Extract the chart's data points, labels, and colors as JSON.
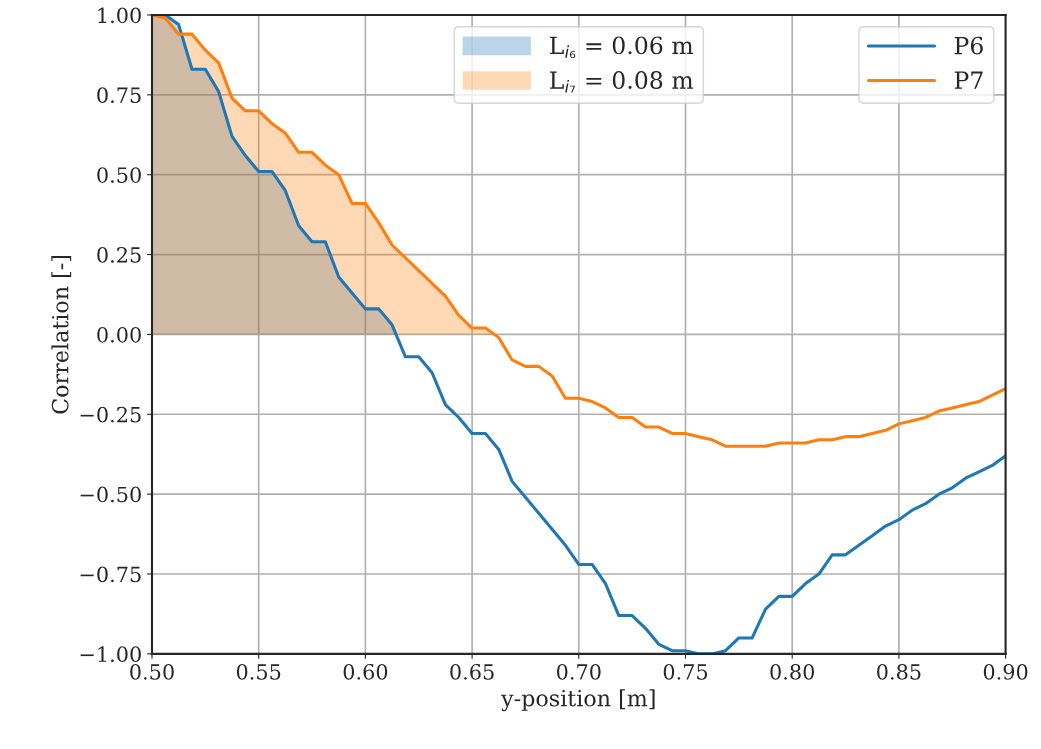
{
  "chart_data": {
    "type": "line",
    "xlabel": "y-position [m]",
    "ylabel": "Correlation [-]",
    "x": [
      0.5,
      0.50625,
      0.5125,
      0.51875,
      0.525,
      0.53125,
      0.5375,
      0.54375,
      0.55,
      0.55625,
      0.5625,
      0.56875,
      0.575,
      0.58125,
      0.5875,
      0.59375,
      0.6,
      0.60625,
      0.6125,
      0.61875,
      0.625,
      0.63125,
      0.6375,
      0.64375,
      0.65,
      0.65625,
      0.6625,
      0.66875,
      0.675,
      0.68125,
      0.6875,
      0.69375,
      0.7,
      0.70625,
      0.7125,
      0.71875,
      0.725,
      0.73125,
      0.7375,
      0.74375,
      0.75,
      0.75625,
      0.7625,
      0.76875,
      0.775,
      0.78125,
      0.7875,
      0.79375,
      0.8,
      0.80625,
      0.8125,
      0.81875,
      0.825,
      0.83125,
      0.8375,
      0.84375,
      0.85,
      0.85625,
      0.8625,
      0.86875,
      0.875,
      0.88125,
      0.8875,
      0.89375,
      0.9
    ],
    "series": [
      {
        "type": "area",
        "name": "L$_{i₆}$ = 0.06 m",
        "color": "#1f77b4",
        "x": [
          0.5,
          0.50625,
          0.5125,
          0.51875,
          0.525,
          0.53125,
          0.5375,
          0.54375,
          0.55,
          0.55625,
          0.5625,
          0.56875,
          0.575,
          0.58125,
          0.5875,
          0.59375,
          0.6,
          0.60625,
          0.6125,
          0.614
        ],
        "values": [
          1.0,
          1.0,
          0.97,
          0.83,
          0.83,
          0.76,
          0.62,
          0.56,
          0.51,
          0.51,
          0.45,
          0.34,
          0.29,
          0.29,
          0.18,
          0.13,
          0.08,
          0.08,
          0.03,
          0.0
        ]
      },
      {
        "type": "area",
        "name": "L$_{i₇}$ = 0.08 m",
        "color": "#ff7f0e",
        "x": [
          0.5,
          0.50625,
          0.5125,
          0.51875,
          0.525,
          0.53125,
          0.5375,
          0.54375,
          0.55,
          0.55625,
          0.5625,
          0.56875,
          0.575,
          0.58125,
          0.5875,
          0.59375,
          0.6,
          0.60625,
          0.6125,
          0.61875,
          0.625,
          0.63125,
          0.6375,
          0.64375,
          0.65,
          0.65625,
          0.66
        ],
        "values": [
          1.0,
          0.99,
          0.94,
          0.94,
          0.89,
          0.85,
          0.74,
          0.7,
          0.7,
          0.66,
          0.63,
          0.57,
          0.57,
          0.53,
          0.5,
          0.41,
          0.41,
          0.35,
          0.28,
          0.24,
          0.2,
          0.16,
          0.12,
          0.06,
          0.02,
          0.02,
          0.0
        ]
      },
      {
        "name": "P6",
        "color": "#1f77b4",
        "values": [
          1.0,
          1.0,
          0.97,
          0.83,
          0.83,
          0.76,
          0.62,
          0.56,
          0.51,
          0.51,
          0.45,
          0.34,
          0.29,
          0.29,
          0.18,
          0.13,
          0.08,
          0.08,
          0.03,
          -0.07,
          -0.07,
          -0.12,
          -0.22,
          -0.26,
          -0.31,
          -0.31,
          -0.36,
          -0.46,
          -0.51,
          -0.56,
          -0.61,
          -0.66,
          -0.72,
          -0.72,
          -0.78,
          -0.88,
          -0.88,
          -0.92,
          -0.97,
          -0.99,
          -0.99,
          -1.0,
          -1.0,
          -0.99,
          -0.95,
          -0.95,
          -0.86,
          -0.82,
          -0.82,
          -0.78,
          -0.75,
          -0.69,
          -0.69,
          -0.66,
          -0.63,
          -0.6,
          -0.58,
          -0.55,
          -0.53,
          -0.5,
          -0.48,
          -0.45,
          -0.43,
          -0.41,
          -0.38
        ]
      },
      {
        "name": "P7",
        "color": "#ff7f0e",
        "values": [
          1.0,
          0.99,
          0.94,
          0.94,
          0.89,
          0.85,
          0.74,
          0.7,
          0.7,
          0.66,
          0.63,
          0.57,
          0.57,
          0.53,
          0.5,
          0.41,
          0.41,
          0.35,
          0.28,
          0.24,
          0.2,
          0.16,
          0.12,
          0.06,
          0.02,
          0.02,
          -0.01,
          -0.08,
          -0.1,
          -0.1,
          -0.13,
          -0.2,
          -0.2,
          -0.21,
          -0.23,
          -0.26,
          -0.26,
          -0.29,
          -0.29,
          -0.31,
          -0.31,
          -0.32,
          -0.33,
          -0.35,
          -0.35,
          -0.35,
          -0.35,
          -0.34,
          -0.34,
          -0.34,
          -0.33,
          -0.33,
          -0.32,
          -0.32,
          -0.31,
          -0.3,
          -0.28,
          -0.27,
          -0.26,
          -0.24,
          -0.23,
          -0.22,
          -0.21,
          -0.19,
          -0.17
        ]
      }
    ],
    "xlim": [
      0.5,
      0.9
    ],
    "xticks": [
      {
        "value": 0.5,
        "label": "0.50"
      },
      {
        "value": 0.55,
        "label": "0.55"
      },
      {
        "value": 0.6,
        "label": "0.60"
      },
      {
        "value": 0.65,
        "label": "0.65"
      },
      {
        "value": 0.7,
        "label": "0.70"
      },
      {
        "value": 0.75,
        "label": "0.75"
      },
      {
        "value": 0.8,
        "label": "0.80"
      },
      {
        "value": 0.85,
        "label": "0.85"
      },
      {
        "value": 0.9,
        "label": "0.90"
      }
    ],
    "ylim": [
      -1.0,
      1.0
    ],
    "yticks": [
      {
        "value": -1.0,
        "label": "−1.00"
      },
      {
        "value": -0.75,
        "label": "−0.75"
      },
      {
        "value": -0.5,
        "label": "−0.50"
      },
      {
        "value": -0.25,
        "label": "−0.25"
      },
      {
        "value": 0,
        "label": "0.00"
      },
      {
        "value": 0.25,
        "label": "0.25"
      },
      {
        "value": 0.5,
        "label": "0.50"
      },
      {
        "value": 0.75,
        "label": "0.75"
      },
      {
        "value": 1.0,
        "label": "1.00"
      }
    ],
    "grid": true,
    "legend": "top right"
  }
}
